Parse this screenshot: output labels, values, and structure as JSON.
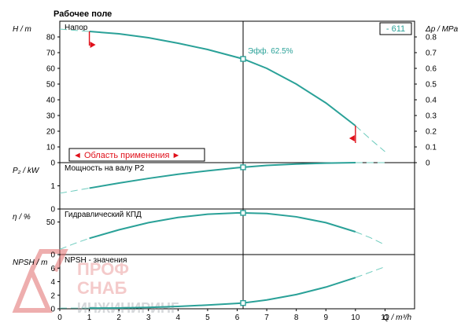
{
  "title": "Рабочее поле",
  "badge": "- 611",
  "operating_point_label": "Эфф.  62.5%",
  "application_area_label": "◄ Область применения ►",
  "watermark": {
    "line1": "ПРОФ",
    "line2": "СНАБ",
    "line3": "ИНЖИНИРИНГ"
  },
  "colors": {
    "curve": "#2aa198",
    "curve_extension": "#6ccbbd",
    "limit": "#e0101a",
    "watermark": "#e06b6b"
  },
  "chart_data": [
    {
      "type": "line",
      "id": "head",
      "title": "Напор",
      "ylabel": "H / m",
      "ylabel_right": "Δp / MPa",
      "yticks": [
        0,
        10,
        20,
        30,
        40,
        50,
        60,
        70,
        80
      ],
      "yticks_right": [
        0,
        0.1,
        0.2,
        0.3,
        0.4,
        0.5,
        0.6,
        0.7,
        0.8
      ],
      "ylim": [
        0,
        90
      ],
      "xlim": [
        0,
        12
      ],
      "series": [
        {
          "x": [
            1,
            2,
            3,
            4,
            5,
            6,
            6.2,
            7,
            8,
            9,
            10
          ],
          "y": [
            83.5,
            82,
            79.5,
            76,
            72,
            67,
            66,
            60,
            50,
            38,
            23.5
          ]
        }
      ],
      "extension": {
        "x": [
          0,
          0.5,
          1,
          10,
          10.5,
          11
        ],
        "y": [
          85,
          84.2,
          83.5,
          23.5,
          15,
          7
        ]
      },
      "operating_point": {
        "x": 6.2,
        "y": 66
      },
      "limits_x": [
        1,
        10
      ]
    },
    {
      "type": "line",
      "id": "power",
      "title": "Мощность на валу P2",
      "ylabel": "P₂ / kW",
      "yticks": [
        0,
        1
      ],
      "ylim": [
        0,
        2
      ],
      "xlim": [
        0,
        12
      ],
      "series": [
        {
          "x": [
            1,
            2,
            3,
            4,
            5,
            6,
            6.2,
            7,
            8,
            9,
            10
          ],
          "y": [
            0.9,
            1.12,
            1.32,
            1.5,
            1.65,
            1.78,
            1.8,
            1.88,
            1.94,
            1.98,
            2.0
          ]
        }
      ],
      "extension": {
        "x": [
          0,
          0.5,
          1,
          10,
          10.5,
          11
        ],
        "y": [
          0.68,
          0.79,
          0.9,
          2.0,
          2.0,
          2.0
        ]
      },
      "operating_point": {
        "x": 6.2,
        "y": 1.8
      }
    },
    {
      "type": "line",
      "id": "efficiency",
      "title": "Гидравлический КПД",
      "ylabel": "η / %",
      "yticks": [
        0,
        50
      ],
      "ylim": [
        0,
        70
      ],
      "xlim": [
        0,
        12
      ],
      "series": [
        {
          "x": [
            1,
            2,
            3,
            4,
            5,
            6,
            6.2,
            7,
            8,
            9,
            10
          ],
          "y": [
            25,
            38,
            49,
            57,
            62,
            64,
            64,
            63,
            58,
            49,
            35
          ]
        }
      ],
      "extension": {
        "x": [
          0,
          0.5,
          1,
          10,
          10.5,
          11
        ],
        "y": [
          8,
          17,
          25,
          35,
          26,
          15
        ]
      },
      "operating_point": {
        "x": 6.2,
        "y": 64
      }
    },
    {
      "type": "line",
      "id": "npsh",
      "title": "NPSH - значения",
      "ylabel": "NPSH / m",
      "yticks": [
        0,
        2,
        4,
        6
      ],
      "ylim": [
        0,
        8
      ],
      "xlim": [
        0,
        12
      ],
      "xlabel": "Q / m³/h",
      "xticks": [
        0,
        1,
        2,
        3,
        4,
        5,
        6,
        7,
        8,
        9,
        10,
        11
      ],
      "series": [
        {
          "x": [
            1,
            2,
            3,
            4,
            5,
            6,
            6.2,
            7,
            8,
            9,
            10
          ],
          "y": [
            0.1,
            0.12,
            0.2,
            0.35,
            0.55,
            0.8,
            0.85,
            1.3,
            2.1,
            3.2,
            4.6
          ]
        }
      ],
      "extension": {
        "x": [
          0,
          0.5,
          1,
          10,
          10.5,
          11
        ],
        "y": [
          0.1,
          0.1,
          0.1,
          4.6,
          5.4,
          6.2
        ]
      },
      "operating_point": {
        "x": 6.2,
        "y": 0.85
      }
    }
  ]
}
